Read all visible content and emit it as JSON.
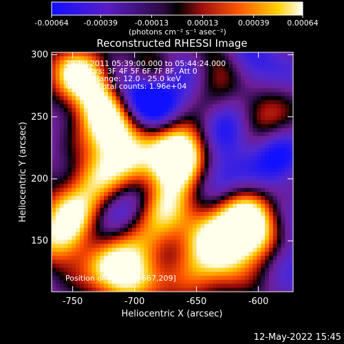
{
  "colorbar": {
    "tick_labels": [
      "-0.00064",
      "-0.00039",
      "-0.00013",
      "0.00013",
      "0.00039",
      "0.00064"
    ],
    "tick_values": [
      -0.00064,
      -0.00039,
      -0.00013,
      0.00013,
      0.00039,
      0.00064
    ],
    "range": [
      -0.00064,
      0.00064
    ],
    "units_label": "(photons cm⁻² s⁻¹ asec⁻²)",
    "colormap": "blue-purple-black-red-orange-yellow-white"
  },
  "chart_data": {
    "type": "heatmap",
    "title": "Reconstructed RHESSI Image",
    "xlabel": "Heliocentric X (arcsec)",
    "ylabel": "Heliocentric Y (arcsec)",
    "xlim": [
      -767,
      -572
    ],
    "ylim": [
      109,
      302
    ],
    "x_ticks": [
      -750,
      -700,
      -650,
      -600
    ],
    "y_ticks": [
      150,
      200,
      250,
      300
    ],
    "peak_position": [
      -667,
      209
    ],
    "hot_regions": [
      {
        "x": -745,
        "y": 285,
        "rel": 0.9
      },
      {
        "x": -728,
        "y": 262,
        "rel": 0.85
      },
      {
        "x": -718,
        "y": 238,
        "rel": 0.95
      },
      {
        "x": -705,
        "y": 215,
        "rel": 0.7
      },
      {
        "x": -732,
        "y": 198,
        "rel": 0.8
      },
      {
        "x": -748,
        "y": 172,
        "rel": 0.75
      },
      {
        "x": -760,
        "y": 150,
        "rel": 0.8
      },
      {
        "x": -722,
        "y": 130,
        "rel": 0.7
      },
      {
        "x": -667,
        "y": 209,
        "rel": 1.0
      },
      {
        "x": -658,
        "y": 228,
        "rel": 0.9
      },
      {
        "x": -675,
        "y": 180,
        "rel": 0.75
      },
      {
        "x": -690,
        "y": 150,
        "rel": 0.7
      },
      {
        "x": -705,
        "y": 120,
        "rel": 0.75
      },
      {
        "x": -640,
        "y": 160,
        "rel": 0.7
      },
      {
        "x": -610,
        "y": 172,
        "rel": 0.9
      },
      {
        "x": -598,
        "y": 150,
        "rel": 0.8
      },
      {
        "x": -625,
        "y": 140,
        "rel": 0.75
      },
      {
        "x": -652,
        "y": 120,
        "rel": 0.7
      },
      {
        "x": -632,
        "y": 285,
        "rel": 0.6
      },
      {
        "x": -600,
        "y": 250,
        "rel": 0.5
      },
      {
        "x": -690,
        "y": 290,
        "rel": 0.5
      }
    ],
    "cold_regions": [
      {
        "x": -688,
        "y": 260,
        "rel": 0.9
      },
      {
        "x": -705,
        "y": 270,
        "rel": 0.7
      },
      {
        "x": -700,
        "y": 185,
        "rel": 0.6
      },
      {
        "x": -640,
        "y": 195,
        "rel": 0.8
      },
      {
        "x": -625,
        "y": 240,
        "rel": 0.9
      },
      {
        "x": -585,
        "y": 215,
        "rel": 0.9
      },
      {
        "x": -580,
        "y": 140,
        "rel": 0.8
      },
      {
        "x": -660,
        "y": 285,
        "rel": 0.6
      },
      {
        "x": -730,
        "y": 155,
        "rel": 0.5
      },
      {
        "x": -610,
        "y": 290,
        "rel": 0.8
      }
    ]
  },
  "annotations": {
    "time_range": "29-Jul-2011 05:39:00.000 to 05:44:24.000",
    "detectors": "Detectors: 3F 4F 5F 6F 7F 8F, Att 0",
    "energy_range": "Energy Range: 12.0 - 25.0 keV",
    "clean_counts": "Clean     Total counts: 1.96e+04",
    "peak_label": "Position of Peak = [-667,209]"
  },
  "footer": {
    "date_stamp": "12-May-2022 15:45"
  }
}
